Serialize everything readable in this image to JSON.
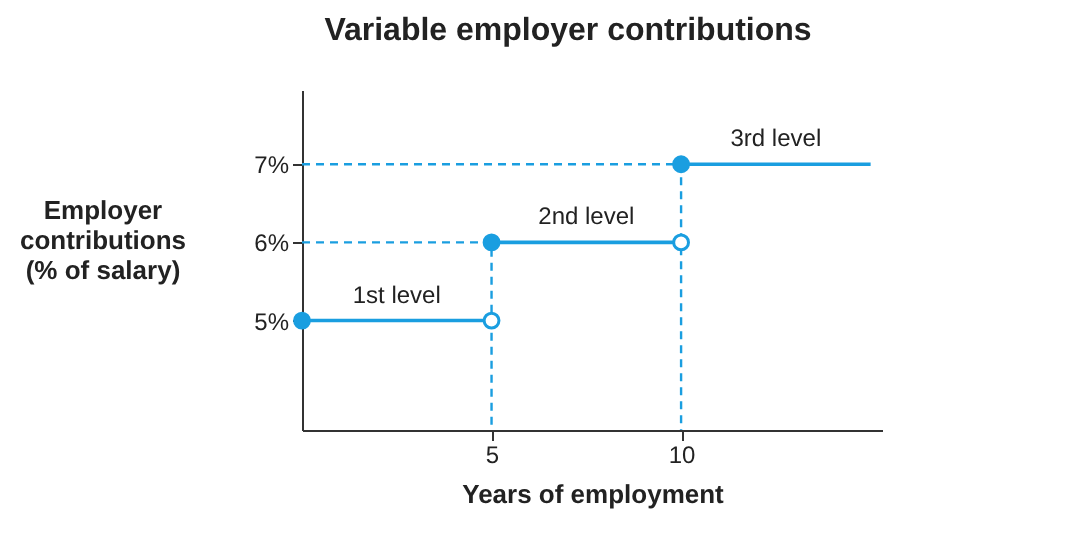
{
  "chart_data": {
    "type": "step",
    "title": "Variable employer contributions",
    "xlabel": "Years of employment",
    "ylabel": "Employer contributions (% of salary)",
    "xlim": [
      0,
      15.3
    ],
    "xticks": [
      5,
      10
    ],
    "ylim": [
      3.6,
      7.95
    ],
    "yticks": [
      {
        "value": 5,
        "label": "5%"
      },
      {
        "value": 6,
        "label": "6%"
      },
      {
        "value": 7,
        "label": "7%"
      }
    ],
    "grid": false,
    "series": [
      {
        "type": "line",
        "line_style": "dashed",
        "color": "#1a9ee0",
        "x": [
          0,
          5,
          5
        ],
        "values": [
          6,
          6,
          3.6
        ]
      },
      {
        "type": "line",
        "line_style": "dashed",
        "color": "#1a9ee0",
        "x": [
          0,
          10,
          10
        ],
        "values": [
          7,
          7,
          3.6
        ]
      },
      {
        "line_style": "solid",
        "color": "#1a9ee0",
        "x": [
          0,
          5
        ],
        "values": [
          5,
          5
        ]
      },
      {
        "line_style": "solid",
        "color": "#1a9ee0",
        "x": [
          5,
          10
        ],
        "values": [
          6,
          6
        ]
      },
      {
        "line_style": "solid",
        "color": "#1a9ee0",
        "x": [
          10,
          15
        ],
        "values": [
          7,
          7
        ]
      },
      {
        "type": "scatter",
        "marker": "circle",
        "color": "#1a9ee0",
        "x": [
          0,
          5,
          10
        ],
        "values": [
          5,
          6,
          7
        ]
      },
      {
        "type": "scatter",
        "marker": "circle",
        "color": "#1a9ee0",
        "x": [
          5,
          10
        ],
        "values": [
          5,
          6
        ]
      }
    ],
    "annotations": [
      {
        "text": "1st level",
        "x": 2.5,
        "y": 5
      },
      {
        "text": "2nd level",
        "x": 7.5,
        "y": 6
      },
      {
        "text": "3rd level",
        "x": 12.5,
        "y": 7
      }
    ]
  }
}
